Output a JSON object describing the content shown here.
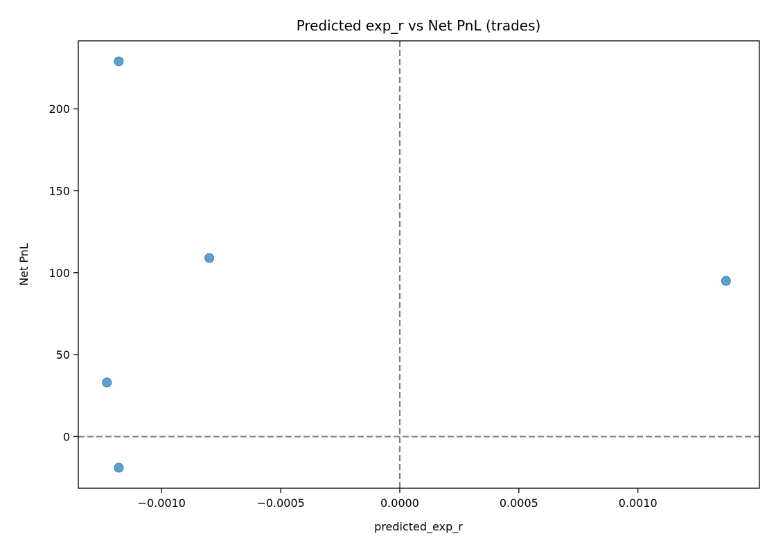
{
  "chart_data": {
    "type": "scatter",
    "title": "Predicted exp_r vs Net PnL (trades)",
    "xlabel": "predicted_exp_r",
    "ylabel": "Net PnL",
    "xlim": [
      -0.00135,
      0.00151
    ],
    "ylim": [
      -31.5,
      241.5
    ],
    "xticks": [
      -0.001,
      -0.0005,
      0.0,
      0.0005,
      0.001
    ],
    "xtick_labels": [
      "−0.0010",
      "−0.0005",
      "0.0000",
      "0.0005",
      "0.0010"
    ],
    "yticks": [
      0,
      50,
      100,
      150,
      200
    ],
    "ytick_labels": [
      "0",
      "50",
      "100",
      "150",
      "200"
    ],
    "grid": false,
    "reference_lines": {
      "vertical_x": 0,
      "horizontal_y": 0,
      "style": "dashed",
      "color": "#7f7f7f"
    },
    "series": [
      {
        "color": "#1f77b4",
        "opacity": 0.7,
        "points": [
          {
            "x": -0.00118,
            "y": 229
          },
          {
            "x": -0.0008,
            "y": 109
          },
          {
            "x": -0.00123,
            "y": 33
          },
          {
            "x": -0.00118,
            "y": -19
          },
          {
            "x": 0.00137,
            "y": 95
          }
        ]
      }
    ]
  }
}
